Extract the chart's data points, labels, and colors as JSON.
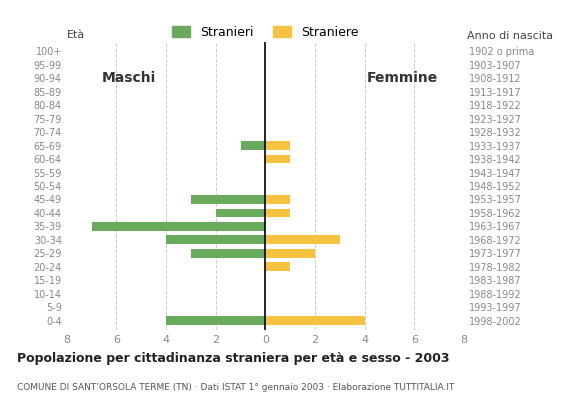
{
  "age_groups_bottom_to_top": [
    "0-4",
    "5-9",
    "10-14",
    "15-19",
    "20-24",
    "25-29",
    "30-34",
    "35-39",
    "40-44",
    "45-49",
    "50-54",
    "55-59",
    "60-64",
    "65-69",
    "70-74",
    "75-79",
    "80-84",
    "85-89",
    "90-94",
    "95-99",
    "100+"
  ],
  "birth_years_bottom_to_top": [
    "1998-2002",
    "1993-1997",
    "1988-1992",
    "1983-1987",
    "1978-1982",
    "1973-1977",
    "1968-1972",
    "1963-1967",
    "1958-1962",
    "1953-1957",
    "1948-1952",
    "1943-1947",
    "1938-1942",
    "1933-1937",
    "1928-1932",
    "1923-1927",
    "1918-1922",
    "1913-1917",
    "1908-1912",
    "1903-1907",
    "1902 o prima"
  ],
  "males_bottom_to_top": [
    4,
    0,
    0,
    0,
    0,
    3,
    4,
    7,
    2,
    3,
    0,
    0,
    0,
    1,
    0,
    0,
    0,
    0,
    0,
    0,
    0
  ],
  "females_bottom_to_top": [
    4,
    0,
    0,
    0,
    1,
    2,
    3,
    0,
    1,
    1,
    0,
    0,
    1,
    1,
    0,
    0,
    0,
    0,
    0,
    0,
    0
  ],
  "male_color": "#6aaa5e",
  "female_color": "#f5c242",
  "title": "Popolazione per cittadinanza straniera per età e sesso - 2003",
  "subtitle": "COMUNE DI SANT’ORSOLA TERME (TN) · Dati ISTAT 1° gennaio 2003 · Elaborazione TUTTITALIA.IT",
  "legend_male": "Stranieri",
  "legend_female": "Straniere",
  "eta_label": "Età",
  "label_maschi": "Maschi",
  "label_femmine": "Femmine",
  "xlim": 8,
  "anno_label": "Anno di nascita",
  "background_color": "#ffffff",
  "grid_color": "#cccccc",
  "tick_color": "#888888"
}
